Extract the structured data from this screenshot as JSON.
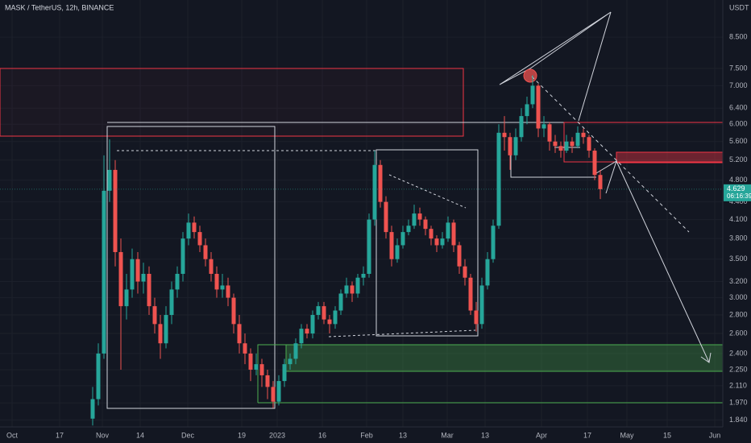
{
  "chart_data": {
    "type": "candlestick",
    "title": "MASK / TetherUS, 12h, BINANCE",
    "currency": "USDT",
    "up_color": "#26a69a",
    "down_color": "#ef5350",
    "log_scale": true,
    "grid": true,
    "ylim": [
      1.79,
      9.86
    ],
    "yticks": [
      {
        "value": 1.84,
        "label": "1.840"
      },
      {
        "value": 1.97,
        "label": "1.970"
      },
      {
        "value": 2.11,
        "label": "2.110"
      },
      {
        "value": 2.25,
        "label": "2.250"
      },
      {
        "value": 2.4,
        "label": "2.400"
      },
      {
        "value": 2.6,
        "label": "2.600"
      },
      {
        "value": 2.8,
        "label": "2.800"
      },
      {
        "value": 3.0,
        "label": "3.000"
      },
      {
        "value": 3.2,
        "label": "3.200"
      },
      {
        "value": 3.5,
        "label": "3.500"
      },
      {
        "value": 3.8,
        "label": "3.800"
      },
      {
        "value": 4.1,
        "label": "4.100"
      },
      {
        "value": 4.4,
        "label": "4.400"
      },
      {
        "value": 4.8,
        "label": "4.800"
      },
      {
        "value": 5.2,
        "label": "5.200"
      },
      {
        "value": 5.6,
        "label": "5.600"
      },
      {
        "value": 6.0,
        "label": "6.000"
      },
      {
        "value": 6.4,
        "label": "6.400"
      },
      {
        "value": 7.0,
        "label": "7.000"
      },
      {
        "value": 7.5,
        "label": "7.500"
      },
      {
        "value": 8.5,
        "label": "8.500"
      }
    ],
    "xtick_labels": [
      "Oct",
      "17",
      "Nov",
      "14",
      "Dec",
      "19",
      "2023",
      "16",
      "Feb",
      "13",
      "Mar",
      "13",
      "Apr",
      "17",
      "May",
      "15",
      "Jun"
    ],
    "countdown": "06:16:39",
    "open": [
      1.85,
      2.0,
      2.4,
      4.6,
      5.0,
      3.6,
      2.9,
      3.1,
      3.5,
      3.2,
      3.3,
      2.9,
      2.7,
      2.5,
      2.8,
      3.1,
      3.3,
      3.8,
      4.05,
      3.9,
      3.7,
      3.5,
      3.3,
      3.1,
      3.15,
      3.0,
      2.7,
      2.5,
      2.4,
      2.25,
      2.3,
      2.2,
      2.1,
      1.98,
      2.15,
      2.3,
      2.35,
      2.5,
      2.65,
      2.6,
      2.8,
      2.9,
      2.75,
      2.7,
      2.85,
      3.05,
      3.15,
      3.05,
      3.25,
      3.3,
      4.1,
      5.1,
      4.4,
      3.9,
      3.5,
      3.7,
      3.9,
      4.0,
      4.2,
      4.1,
      3.95,
      3.8,
      3.7,
      3.8,
      4.05,
      3.7,
      3.4,
      3.25,
      2.85,
      2.7,
      3.15,
      3.5,
      4.0,
      5.8,
      5.7,
      5.3,
      5.7,
      6.2,
      6.5,
      7.0,
      5.9,
      6.0,
      5.6,
      5.5,
      5.4,
      5.6,
      5.5,
      5.8,
      5.7,
      5.4,
      4.9
    ],
    "high": [
      2.1,
      2.5,
      5.3,
      5.65,
      5.2,
      3.8,
      3.3,
      3.65,
      3.6,
      3.45,
      3.4,
      3.0,
      2.8,
      2.9,
      3.2,
      3.4,
      3.9,
      4.2,
      4.15,
      4.0,
      3.8,
      3.6,
      3.4,
      3.3,
      3.25,
      3.05,
      2.8,
      2.6,
      2.45,
      2.4,
      2.35,
      2.25,
      2.15,
      2.2,
      2.35,
      2.4,
      2.55,
      2.7,
      2.7,
      2.85,
      2.95,
      2.95,
      2.8,
      2.9,
      3.1,
      3.25,
      3.2,
      3.3,
      3.4,
      4.2,
      5.4,
      5.2,
      4.5,
      4.0,
      3.8,
      4.0,
      4.1,
      4.35,
      4.3,
      4.15,
      4.0,
      3.85,
      3.9,
      4.15,
      4.1,
      3.75,
      3.5,
      3.3,
      2.95,
      3.25,
      3.6,
      4.1,
      6.0,
      6.2,
      5.8,
      5.9,
      6.4,
      6.7,
      7.3,
      7.05,
      6.2,
      6.05,
      5.75,
      5.6,
      5.75,
      5.7,
      5.95,
      5.9,
      5.75,
      5.45,
      5.0
    ],
    "low": [
      1.8,
      1.95,
      2.35,
      4.4,
      3.4,
      2.25,
      2.75,
      3.0,
      3.05,
      3.05,
      2.8,
      2.6,
      2.35,
      2.45,
      2.7,
      3.0,
      3.2,
      3.7,
      3.8,
      3.6,
      3.4,
      3.2,
      3.0,
      3.0,
      2.9,
      2.6,
      2.4,
      2.3,
      2.15,
      2.2,
      2.1,
      2.0,
      1.93,
      1.95,
      2.1,
      2.25,
      2.3,
      2.45,
      2.55,
      2.55,
      2.75,
      2.7,
      2.6,
      2.65,
      2.8,
      3.0,
      2.95,
      3.0,
      3.15,
      3.25,
      4.0,
      4.3,
      3.8,
      3.4,
      3.45,
      3.65,
      3.85,
      3.95,
      4.0,
      3.85,
      3.7,
      3.6,
      3.65,
      3.75,
      3.6,
      3.3,
      3.15,
      2.8,
      2.62,
      2.65,
      3.1,
      3.45,
      3.95,
      5.4,
      5.0,
      5.2,
      5.6,
      6.0,
      6.4,
      5.7,
      5.7,
      5.4,
      5.35,
      5.25,
      5.35,
      5.35,
      5.45,
      5.55,
      5.25,
      4.8,
      4.45
    ],
    "close": [
      2.0,
      2.4,
      4.6,
      5.0,
      3.6,
      2.9,
      3.1,
      3.5,
      3.2,
      3.3,
      2.9,
      2.7,
      2.5,
      2.8,
      3.1,
      3.3,
      3.8,
      4.05,
      3.9,
      3.7,
      3.5,
      3.3,
      3.1,
      3.15,
      3.0,
      2.7,
      2.5,
      2.4,
      2.25,
      2.3,
      2.2,
      2.1,
      1.98,
      2.15,
      2.3,
      2.35,
      2.5,
      2.65,
      2.6,
      2.8,
      2.9,
      2.75,
      2.7,
      2.85,
      3.05,
      3.15,
      3.05,
      3.25,
      3.3,
      4.1,
      5.1,
      4.4,
      3.9,
      3.5,
      3.7,
      3.9,
      4.0,
      4.2,
      4.1,
      3.95,
      3.8,
      3.7,
      3.8,
      4.05,
      3.7,
      3.4,
      3.25,
      2.85,
      2.7,
      3.15,
      3.5,
      4.0,
      5.8,
      5.7,
      5.3,
      5.7,
      6.2,
      6.5,
      7.0,
      5.9,
      6.0,
      5.6,
      5.5,
      5.4,
      5.6,
      5.5,
      5.8,
      5.7,
      5.4,
      4.9,
      4.629
    ]
  }
}
